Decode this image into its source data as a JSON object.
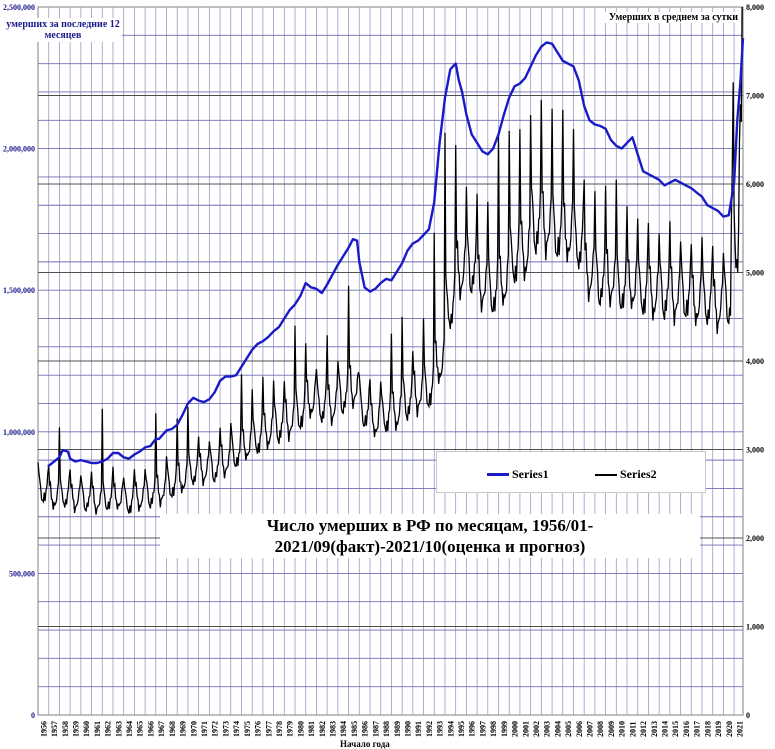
{
  "chart_data": {
    "type": "line",
    "title": "Число умерших в РФ по месяцам, 1956/01-2021/09(факт)-2021/10(оценка и прогноз)",
    "xlabel": "Начало года",
    "ylabel_left": "умерших за последние 12 месяцев",
    "ylabel_right": "Умерших в среднем за сутки",
    "y_left_ticks": [
      "0",
      "500,000",
      "1,000,000",
      "1,500,000",
      "2,000,000",
      "2,500,000"
    ],
    "y_left_lim": [
      0,
      2500000
    ],
    "y_right_ticks": [
      "0",
      "1,000",
      "2,000",
      "3,000",
      "4,000",
      "5,000",
      "6,000",
      "7,000",
      "8,000"
    ],
    "y_right_lim": [
      0,
      8000
    ],
    "x_ticks": [
      "1956",
      "1957",
      "1958",
      "1959",
      "1960",
      "1961",
      "1962",
      "1963",
      "1964",
      "1965",
      "1966",
      "1967",
      "1968",
      "1969",
      "1970",
      "1971",
      "1972",
      "1973",
      "1974",
      "1975",
      "1976",
      "1977",
      "1978",
      "1979",
      "1980",
      "1981",
      "1982",
      "1983",
      "1984",
      "1985",
      "1986",
      "1987",
      "1988",
      "1989",
      "1990",
      "1991",
      "1992",
      "1993",
      "1994",
      "1995",
      "1996",
      "1997",
      "1998",
      "1999",
      "2000",
      "2001",
      "2002",
      "2003",
      "2004",
      "2005",
      "2006",
      "2007",
      "2008",
      "2009",
      "2010",
      "2011",
      "2012",
      "2013",
      "2014",
      "2015",
      "2016",
      "2017",
      "2018",
      "2019",
      "2020",
      "2021"
    ],
    "x_range": [
      1956,
      2021.83
    ],
    "grid": true,
    "legend_position": "right-center",
    "series": [
      {
        "name": "Series1",
        "axis": "left",
        "color": "#1a1ac8",
        "x": [
          1956.9,
          1957.0,
          1957.5,
          1958.0,
          1958.3,
          1958.8,
          1959.0,
          1959.5,
          1960.0,
          1960.5,
          1961.0,
          1961.5,
          1962.0,
          1962.5,
          1963.0,
          1963.5,
          1964.0,
          1964.5,
          1965.0,
          1965.5,
          1966.0,
          1966.5,
          1967.0,
          1967.3,
          1968.0,
          1968.5,
          1969.0,
          1969.5,
          1970.0,
          1970.5,
          1971.0,
          1971.5,
          1972.0,
          1972.5,
          1973.0,
          1973.5,
          1974.0,
          1974.5,
          1975.0,
          1975.5,
          1976.0,
          1976.5,
          1977.0,
          1977.5,
          1978.0,
          1978.5,
          1979.0,
          1979.5,
          1980.0,
          1980.5,
          1981.0,
          1981.5,
          1982.0,
          1982.5,
          1983.0,
          1983.5,
          1984.0,
          1984.5,
          1985.0,
          1985.4,
          1985.8,
          1986.0,
          1986.5,
          1987.0,
          1987.5,
          1988.0,
          1988.5,
          1989.0,
          1989.5,
          1990.0,
          1990.5,
          1991.0,
          1991.5,
          1992.0,
          1992.5,
          1993.0,
          1993.5,
          1994.0,
          1994.5,
          1995.0,
          1995.3,
          1995.6,
          1996.0,
          1996.5,
          1997.0,
          1997.5,
          1998.0,
          1998.5,
          1999.0,
          1999.5,
          2000.0,
          2000.5,
          2001.0,
          2001.5,
          2002.0,
          2002.5,
          2003.0,
          2003.5,
          2004.0,
          2004.5,
          2005.0,
          2005.5,
          2006.0,
          2006.5,
          2007.0,
          2007.5,
          2008.0,
          2008.5,
          2009.0,
          2009.5,
          2010.0,
          2010.5,
          2011.0,
          2011.5,
          2012.0,
          2012.5,
          2013.0,
          2013.5,
          2014.0,
          2014.5,
          2015.0,
          2015.5,
          2016.0,
          2016.5,
          2017.0,
          2017.5,
          2018.0,
          2018.5,
          2019.0,
          2019.5,
          2020.0,
          2020.5,
          2021.0,
          2021.3,
          2021.6,
          2021.83
        ],
        "values": [
          880000,
          880000,
          895000,
          910000,
          935000,
          930000,
          905000,
          895000,
          900000,
          895000,
          890000,
          890000,
          895000,
          905000,
          925000,
          925000,
          910000,
          905000,
          920000,
          930000,
          945000,
          950000,
          975000,
          975000,
          1005000,
          1010000,
          1025000,
          1060000,
          1100000,
          1120000,
          1110000,
          1105000,
          1115000,
          1140000,
          1180000,
          1195000,
          1195000,
          1200000,
          1230000,
          1260000,
          1290000,
          1310000,
          1320000,
          1335000,
          1355000,
          1370000,
          1400000,
          1430000,
          1450000,
          1480000,
          1525000,
          1510000,
          1505000,
          1490000,
          1520000,
          1555000,
          1590000,
          1620000,
          1650000,
          1680000,
          1675000,
          1600000,
          1510000,
          1495000,
          1505000,
          1525000,
          1540000,
          1535000,
          1565000,
          1595000,
          1640000,
          1665000,
          1675000,
          1695000,
          1715000,
          1810000,
          2020000,
          2180000,
          2280000,
          2300000,
          2240000,
          2200000,
          2120000,
          2050000,
          2020000,
          1990000,
          1980000,
          2000000,
          2050000,
          2120000,
          2180000,
          2220000,
          2230000,
          2250000,
          2290000,
          2330000,
          2360000,
          2375000,
          2370000,
          2340000,
          2310000,
          2300000,
          2290000,
          2240000,
          2150000,
          2100000,
          2085000,
          2080000,
          2070000,
          2030000,
          2010000,
          2000000,
          2020000,
          2040000,
          1980000,
          1920000,
          1910000,
          1900000,
          1890000,
          1870000,
          1880000,
          1890000,
          1880000,
          1870000,
          1860000,
          1845000,
          1830000,
          1800000,
          1790000,
          1780000,
          1760000,
          1765000,
          1880000,
          2100000,
          2240000,
          2390000
        ]
      },
      {
        "name": "Series2",
        "axis": "right",
        "color": "#000000",
        "base_by_year": [
          2550,
          2480,
          2500,
          2460,
          2450,
          2430,
          2450,
          2470,
          2420,
          2470,
          2500,
          2540,
          2610,
          2680,
          2770,
          2790,
          2800,
          2870,
          2960,
          3060,
          3140,
          3220,
          3280,
          3340,
          3430,
          3580,
          3520,
          3520,
          3620,
          3710,
          3440,
          3340,
          3400,
          3450,
          3560,
          3640,
          3690,
          4000,
          4650,
          5050,
          5070,
          4880,
          4800,
          4920,
          5190,
          5270,
          5570,
          5560,
          5480,
          5470,
          5370,
          5030,
          4920,
          4940,
          4840,
          4880,
          4810,
          4790,
          4780,
          4760,
          4760,
          4700,
          4700,
          4640,
          4700,
          5500
        ],
        "winter_peaks": [
          [
            1958,
            3250
          ],
          [
            1962,
            3460
          ],
          [
            1967,
            3410
          ],
          [
            1969,
            3350
          ],
          [
            1970,
            3480
          ],
          [
            1975,
            3850
          ],
          [
            1976,
            3680
          ],
          [
            1977,
            3820
          ],
          [
            1978,
            3780
          ],
          [
            1980,
            4400
          ],
          [
            1981,
            4200
          ],
          [
            1983,
            4290
          ],
          [
            1985,
            4850
          ],
          [
            1989,
            4310
          ],
          [
            1990,
            4500
          ],
          [
            1992,
            4480
          ],
          [
            1993,
            5450
          ],
          [
            1994,
            6580
          ],
          [
            1995,
            6440
          ],
          [
            1996,
            5970
          ],
          [
            1997,
            5890
          ],
          [
            1998,
            5800
          ],
          [
            1999,
            6550
          ],
          [
            2000,
            6600
          ],
          [
            2001,
            6620
          ],
          [
            2002,
            6780
          ],
          [
            2003,
            6950
          ],
          [
            2004,
            6850
          ],
          [
            2005,
            6840
          ],
          [
            2006,
            6620
          ],
          [
            2007,
            6050
          ],
          [
            2008,
            5920
          ],
          [
            2009,
            5980
          ],
          [
            2010,
            6050
          ],
          [
            2011,
            5750
          ],
          [
            2012,
            5610
          ],
          [
            2013,
            5560
          ],
          [
            2014,
            5440
          ],
          [
            2015,
            5580
          ],
          [
            2016,
            5350
          ],
          [
            2017,
            5320
          ],
          [
            2018,
            5400
          ],
          [
            2019,
            5300
          ],
          [
            2020,
            5220
          ],
          [
            2021,
            8000
          ]
        ]
      }
    ]
  }
}
